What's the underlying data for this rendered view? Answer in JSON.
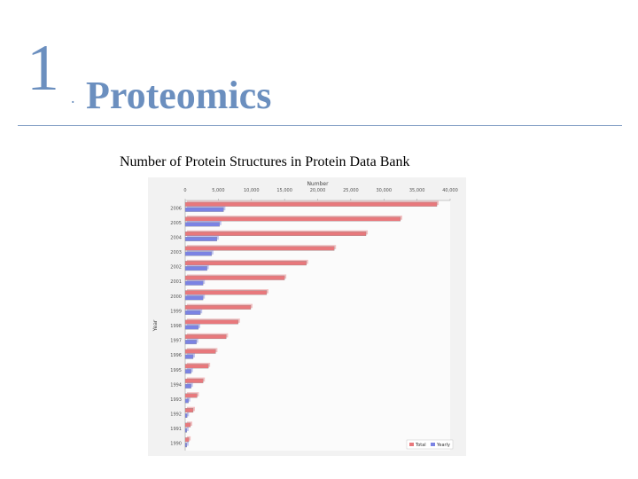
{
  "slide": {
    "number": "1",
    "dot": ".",
    "title": "Proteomics"
  },
  "colors": {
    "accent": "#6b8fbf",
    "total": "#e8787c",
    "yearly": "#7b83e3"
  },
  "chart_data": {
    "type": "bar",
    "orientation": "horizontal",
    "title": "Number of Protein Structures in Protein Data Bank",
    "xlabel": "Number",
    "ylabel": "Year",
    "xlim": [
      0,
      40000
    ],
    "xticks": [
      "0",
      "5,000",
      "10,000",
      "15,000",
      "20,000",
      "25,000",
      "30,000",
      "35,000",
      "40,000"
    ],
    "categories": [
      "2006",
      "2005",
      "2004",
      "2003",
      "2002",
      "2001",
      "2000",
      "1999",
      "1998",
      "1997",
      "1996",
      "1995",
      "1994",
      "1993",
      "1992",
      "1991",
      "1990"
    ],
    "series": [
      {
        "name": "Total",
        "color": "#e8787c",
        "values": [
          38000,
          32500,
          27300,
          22500,
          18300,
          15000,
          12300,
          9900,
          8000,
          6200,
          4600,
          3500,
          2700,
          1800,
          1200,
          800,
          550
        ]
      },
      {
        "name": "Yearly",
        "color": "#7b83e3",
        "values": [
          5800,
          5200,
          4800,
          4000,
          3300,
          2700,
          2700,
          2300,
          2000,
          1700,
          1200,
          900,
          900,
          500,
          300,
          250,
          250
        ]
      }
    ],
    "legend_position": "bottom-right",
    "grid": false
  }
}
